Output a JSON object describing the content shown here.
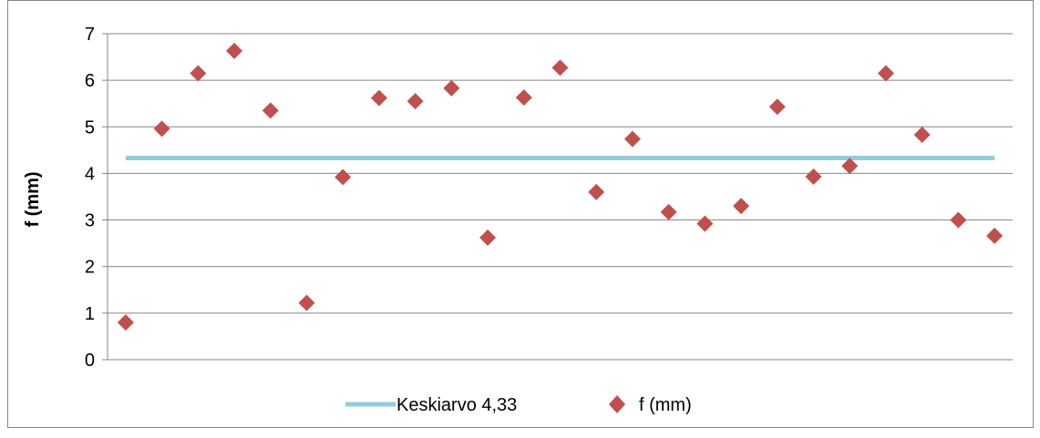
{
  "chart_data": {
    "type": "scatter",
    "title": "",
    "xlabel": "",
    "ylabel": "f (mm)",
    "ylim": [
      0,
      7
    ],
    "yticks": [
      "0",
      "1",
      "2",
      "3",
      "4",
      "5",
      "6",
      "7"
    ],
    "grid": true,
    "legend_position": "bottom",
    "series": [
      {
        "name": "Keskiarvo 4,33",
        "type": "line",
        "color": "#92CDDC",
        "x": [
          1,
          25
        ],
        "values": [
          4.33,
          4.33
        ]
      },
      {
        "name": "f (mm)",
        "type": "scatter",
        "marker": "diamond",
        "color": "#C0504D",
        "x": [
          1,
          2,
          3,
          4,
          5,
          6,
          7,
          8,
          9,
          10,
          11,
          12,
          13,
          14,
          15,
          16,
          17,
          18,
          19,
          20,
          21,
          22,
          23,
          24,
          25
        ],
        "values": [
          0.8,
          4.96,
          6.15,
          6.63,
          5.35,
          1.22,
          3.92,
          5.62,
          5.55,
          5.83,
          2.62,
          5.63,
          6.27,
          3.6,
          4.74,
          3.17,
          2.92,
          3.3,
          5.43,
          3.93,
          4.16,
          6.15,
          4.83,
          3.0,
          2.66
        ]
      }
    ]
  }
}
